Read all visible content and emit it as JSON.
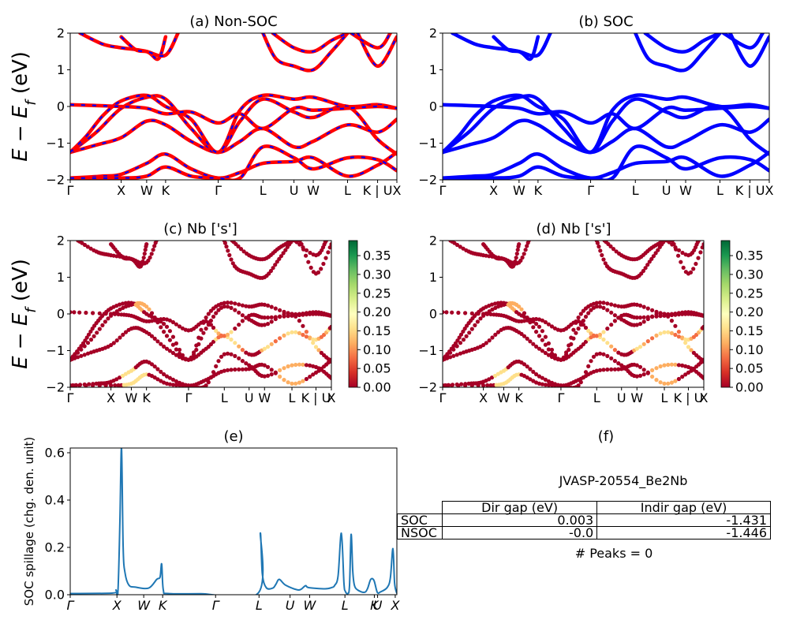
{
  "colors": {
    "nonsoc_main": "#ff0000",
    "nonsoc_dash": "#0000ff",
    "soc": "#0000ff",
    "spillage": "#1f77b4",
    "cmap": "RdYlGn"
  },
  "panels": {
    "a": {
      "title": "(a) Non-SOC",
      "ylabel": "E − E",
      "ylabel_sub": "f",
      "ylabel_unit": " (eV)"
    },
    "b": {
      "title": "(b) SOC"
    },
    "c": {
      "title": "(c)  Nb ['s']",
      "ylabel": "E − E",
      "ylabel_sub": "f",
      "ylabel_unit": " (eV)"
    },
    "d": {
      "title": "(d) Nb ['s']"
    },
    "e": {
      "title": "(e)",
      "ylabel": "SOC spillage (chg. den. unit)"
    },
    "f": {
      "title": "(f)",
      "subtitle": "JVASP-20554_Be2Nb",
      "peaks": "# Peaks = 0",
      "table": {
        "headers": [
          "Dir gap (eV)",
          "Indir gap (eV)"
        ],
        "rows": [
          {
            "label": "SOC",
            "dir": "0.003",
            "indir": "-1.431"
          },
          {
            "label": "NSOC",
            "dir": "-0.0",
            "indir": "-1.446"
          }
        ]
      }
    }
  },
  "chart_data": [
    {
      "id": "a",
      "type": "line",
      "title": "(a) Non-SOC",
      "ylabel": "E − E_f (eV)",
      "ylim": [
        -2,
        2
      ],
      "yticks": [
        "2",
        "1",
        "0",
        "−1",
        "−2"
      ],
      "xticks": [
        {
          "label": "Γ",
          "pos": 0
        },
        {
          "label": "X",
          "pos": 0.156
        },
        {
          "label": "W",
          "pos": 0.234
        },
        {
          "label": "K",
          "pos": 0.292
        },
        {
          "label": "Γ",
          "pos": 0.453
        },
        {
          "label": "L",
          "pos": 0.59
        },
        {
          "label": "U",
          "pos": 0.685
        },
        {
          "label": "W",
          "pos": 0.744
        },
        {
          "label": "L",
          "pos": 0.849
        },
        {
          "label": "K | U",
          "pos": 0.941
        },
        {
          "label": "X",
          "pos": 1.0
        }
      ],
      "series": [
        {
          "values": [
            [
              0,
              -1.25
            ],
            [
              0.08,
              -0.7
            ],
            [
              0.156,
              -0.05
            ],
            [
              0.234,
              0.25
            ],
            [
              0.292,
              0.2
            ],
            [
              0.37,
              -0.6
            ],
            [
              0.453,
              -1.25
            ],
            [
              0.52,
              -0.4
            ],
            [
              0.59,
              0.2
            ],
            [
              0.685,
              -0.15
            ],
            [
              0.744,
              -0.3
            ],
            [
              0.849,
              0.0
            ],
            [
              0.941,
              -0.9
            ],
            [
              1.0,
              -1.3
            ]
          ]
        },
        {
          "values": [
            [
              0,
              -1.25
            ],
            [
              0.08,
              -1.05
            ],
            [
              0.156,
              -0.85
            ],
            [
              0.234,
              -0.4
            ],
            [
              0.292,
              -0.5
            ],
            [
              0.37,
              -0.95
            ],
            [
              0.453,
              -1.25
            ],
            [
              0.52,
              -0.95
            ],
            [
              0.59,
              -0.6
            ],
            [
              0.685,
              -1.1
            ],
            [
              0.744,
              -0.95
            ],
            [
              0.849,
              -0.5
            ],
            [
              0.941,
              -0.7
            ],
            [
              1.0,
              -0.35
            ]
          ]
        },
        {
          "values": [
            [
              0,
              -1.25
            ],
            [
              0.05,
              -0.8
            ],
            [
              0.1,
              -0.25
            ],
            [
              0.156,
              0.15
            ],
            [
              0.234,
              0.3
            ],
            [
              0.292,
              0.0
            ],
            [
              0.37,
              -0.35
            ],
            [
              0.453,
              -1.25
            ],
            [
              0.52,
              -0.1
            ],
            [
              0.59,
              0.3
            ],
            [
              0.685,
              0.2
            ],
            [
              0.744,
              0.25
            ],
            [
              0.849,
              0.0
            ],
            [
              0.941,
              0.05
            ],
            [
              1.0,
              -0.05
            ]
          ]
        },
        {
          "values": [
            [
              0,
              -1.95
            ],
            [
              0.1,
              -1.9
            ],
            [
              0.156,
              -1.85
            ],
            [
              0.234,
              -1.55
            ],
            [
              0.292,
              -1.3
            ],
            [
              0.37,
              -1.7
            ],
            [
              0.453,
              -1.95
            ],
            [
              0.52,
              -1.8
            ],
            [
              0.59,
              -1.55
            ],
            [
              0.685,
              -1.5
            ],
            [
              0.744,
              -1.4
            ],
            [
              0.849,
              -1.9
            ],
            [
              0.941,
              -1.6
            ],
            [
              1.0,
              -1.25
            ]
          ]
        },
        {
          "values": [
            [
              0,
              -1.95
            ],
            [
              0.156,
              -1.95
            ],
            [
              0.234,
              -1.9
            ],
            [
              0.292,
              -1.65
            ],
            [
              0.37,
              -1.9
            ],
            [
              0.453,
              -1.95
            ],
            [
              0.52,
              -1.95
            ],
            [
              0.59,
              -1.1
            ],
            [
              0.685,
              -1.4
            ],
            [
              0.744,
              -1.7
            ],
            [
              0.849,
              -1.4
            ],
            [
              0.941,
              -1.45
            ],
            [
              1.0,
              -1.75
            ]
          ]
        },
        {
          "values": [
            [
              0,
              0.05
            ],
            [
              0.156,
              0.0
            ],
            [
              0.234,
              -0.05
            ],
            [
              0.292,
              -0.2
            ],
            [
              0.37,
              -0.15
            ],
            [
              0.453,
              -0.45
            ],
            [
              0.52,
              -0.2
            ],
            [
              0.59,
              -0.6
            ],
            [
              0.685,
              -0.05
            ],
            [
              0.744,
              -0.1
            ],
            [
              0.849,
              -0.05
            ],
            [
              0.941,
              0.0
            ],
            [
              1.0,
              -0.05
            ]
          ]
        },
        {
          "values": [
            [
              0.03,
              2.0
            ],
            [
              0.1,
              1.7
            ],
            [
              0.156,
              1.6
            ],
            [
              0.234,
              1.5
            ],
            [
              0.27,
              1.3
            ],
            [
              0.292,
              1.9
            ]
          ]
        },
        {
          "values": [
            [
              0.156,
              1.9
            ],
            [
              0.2,
              1.55
            ],
            [
              0.234,
              1.5
            ],
            [
              0.292,
              1.4
            ],
            [
              0.33,
              2.0
            ]
          ]
        },
        {
          "values": [
            [
              0.59,
              2.0
            ],
            [
              0.63,
              1.3
            ],
            [
              0.685,
              1.1
            ],
            [
              0.744,
              1.0
            ],
            [
              0.8,
              1.5
            ],
            [
              0.849,
              2.0
            ]
          ]
        },
        {
          "values": [
            [
              0.62,
              2.0
            ],
            [
              0.685,
              1.6
            ],
            [
              0.744,
              1.5
            ],
            [
              0.8,
              1.8
            ],
            [
              0.849,
              2.0
            ]
          ]
        },
        {
          "values": [
            [
              0.88,
              2.0
            ],
            [
              0.941,
              1.1
            ],
            [
              1.0,
              1.9
            ]
          ]
        },
        {
          "values": [
            [
              0.86,
              2.0
            ],
            [
              0.941,
              1.6
            ],
            [
              0.98,
              2.0
            ]
          ]
        }
      ]
    },
    {
      "id": "b",
      "type": "line",
      "title": "(b) SOC",
      "ylim": [
        -2,
        2
      ],
      "yticks": [
        "2",
        "1",
        "0",
        "−1",
        "−2"
      ],
      "xticks": [
        {
          "label": "Γ",
          "pos": 0
        },
        {
          "label": "X",
          "pos": 0.156
        },
        {
          "label": "W",
          "pos": 0.234
        },
        {
          "label": "K",
          "pos": 0.292
        },
        {
          "label": "Γ",
          "pos": 0.453
        },
        {
          "label": "L",
          "pos": 0.59
        },
        {
          "label": "U",
          "pos": 0.685
        },
        {
          "label": "W",
          "pos": 0.744
        },
        {
          "label": "L",
          "pos": 0.849
        },
        {
          "label": "K | U",
          "pos": 0.941
        },
        {
          "label": "X",
          "pos": 1.0
        }
      ],
      "same_bands_as": "a"
    },
    {
      "id": "c",
      "type": "scatter",
      "title": "(c)  Nb ['s']",
      "ylabel": "E − E_f (eV)",
      "ylim": [
        -2,
        2
      ],
      "yticks": [
        "2",
        "1",
        "0",
        "−1",
        "−2"
      ],
      "colorbar": {
        "range": [
          0,
          0.39
        ],
        "ticks": [
          "0.00",
          "0.05",
          "0.10",
          "0.15",
          "0.20",
          "0.25",
          "0.30",
          "0.35"
        ]
      },
      "xticks": [
        {
          "label": "Γ",
          "pos": 0
        },
        {
          "label": "X",
          "pos": 0.156
        },
        {
          "label": "W",
          "pos": 0.234
        },
        {
          "label": "K",
          "pos": 0.292
        },
        {
          "label": "Γ",
          "pos": 0.453
        },
        {
          "label": "L",
          "pos": 0.59
        },
        {
          "label": "U",
          "pos": 0.685
        },
        {
          "label": "W",
          "pos": 0.744
        },
        {
          "label": "L",
          "pos": 0.849
        },
        {
          "label": "K | U",
          "pos": 0.941
        },
        {
          "label": "X",
          "pos": 1.0
        }
      ],
      "same_bands_as": "a"
    },
    {
      "id": "d",
      "type": "scatter",
      "title": "(d) Nb ['s']",
      "ylim": [
        -2,
        2
      ],
      "yticks": [
        "2",
        "1",
        "0",
        "−1",
        "−2"
      ],
      "colorbar": {
        "range": [
          0,
          0.39
        ],
        "ticks": [
          "0.00",
          "0.05",
          "0.10",
          "0.15",
          "0.20",
          "0.25",
          "0.30",
          "0.35"
        ]
      },
      "xticks": [
        {
          "label": "Γ",
          "pos": 0
        },
        {
          "label": "X",
          "pos": 0.156
        },
        {
          "label": "W",
          "pos": 0.234
        },
        {
          "label": "K",
          "pos": 0.292
        },
        {
          "label": "Γ",
          "pos": 0.453
        },
        {
          "label": "L",
          "pos": 0.59
        },
        {
          "label": "U",
          "pos": 0.685
        },
        {
          "label": "W",
          "pos": 0.744
        },
        {
          "label": "L",
          "pos": 0.849
        },
        {
          "label": "K | U",
          "pos": 0.941
        },
        {
          "label": "X",
          "pos": 1.0
        }
      ],
      "same_bands_as": "a"
    },
    {
      "id": "e",
      "type": "line",
      "title": "(e)",
      "ylabel": "SOC spillage (chg. den. unit)",
      "ylim": [
        0,
        0.62
      ],
      "yticks": [
        "0.6",
        "0.4",
        "0.2",
        "0.0"
      ],
      "xticks": [
        {
          "label": "Γ",
          "pos": 0
        },
        {
          "label": "X",
          "pos": 0.143
        },
        {
          "label": "W",
          "pos": 0.225
        },
        {
          "label": "K",
          "pos": 0.283
        },
        {
          "label": "Γ",
          "pos": 0.445
        },
        {
          "label": "L",
          "pos": 0.578
        },
        {
          "label": "U",
          "pos": 0.673
        },
        {
          "label": "W",
          "pos": 0.733
        },
        {
          "label": "L",
          "pos": 0.841
        },
        {
          "label": "K",
          "pos": 0.931
        },
        {
          "label": "U",
          "pos": 0.941
        },
        {
          "label": "X",
          "pos": 0.995
        }
      ],
      "x": [
        0,
        0.13,
        0.14,
        0.146,
        0.152,
        0.157,
        0.162,
        0.168,
        0.18,
        0.2,
        0.24,
        0.265,
        0.275,
        0.28,
        0.285,
        0.3,
        0.4,
        0.575,
        0.582,
        0.588,
        0.6,
        0.62,
        0.63,
        0.64,
        0.66,
        0.7,
        0.72,
        0.73,
        0.78,
        0.8,
        0.81,
        0.82,
        0.83,
        0.838,
        0.842,
        0.85,
        0.855,
        0.86,
        0.865,
        0.87,
        0.88,
        0.9,
        0.91,
        0.92,
        0.93,
        0.94,
        0.95,
        0.97,
        0.98,
        0.988,
        0.993,
        1.0
      ],
      "y": [
        0.005,
        0.007,
        0.02,
        0.01,
        0.3,
        0.62,
        0.2,
        0.09,
        0.04,
        0.032,
        0.028,
        0.065,
        0.075,
        0.13,
        0.02,
        0.005,
        0.004,
        0.006,
        0.26,
        0.09,
        0.03,
        0.028,
        0.045,
        0.065,
        0.04,
        0.02,
        0.038,
        0.03,
        0.025,
        0.03,
        0.04,
        0.08,
        0.26,
        0.05,
        0.015,
        0.005,
        0.04,
        0.255,
        0.1,
        0.04,
        0.02,
        0.01,
        0.025,
        0.065,
        0.06,
        0.01,
        0.012,
        0.03,
        0.07,
        0.195,
        0.05,
        0.005
      ]
    }
  ]
}
